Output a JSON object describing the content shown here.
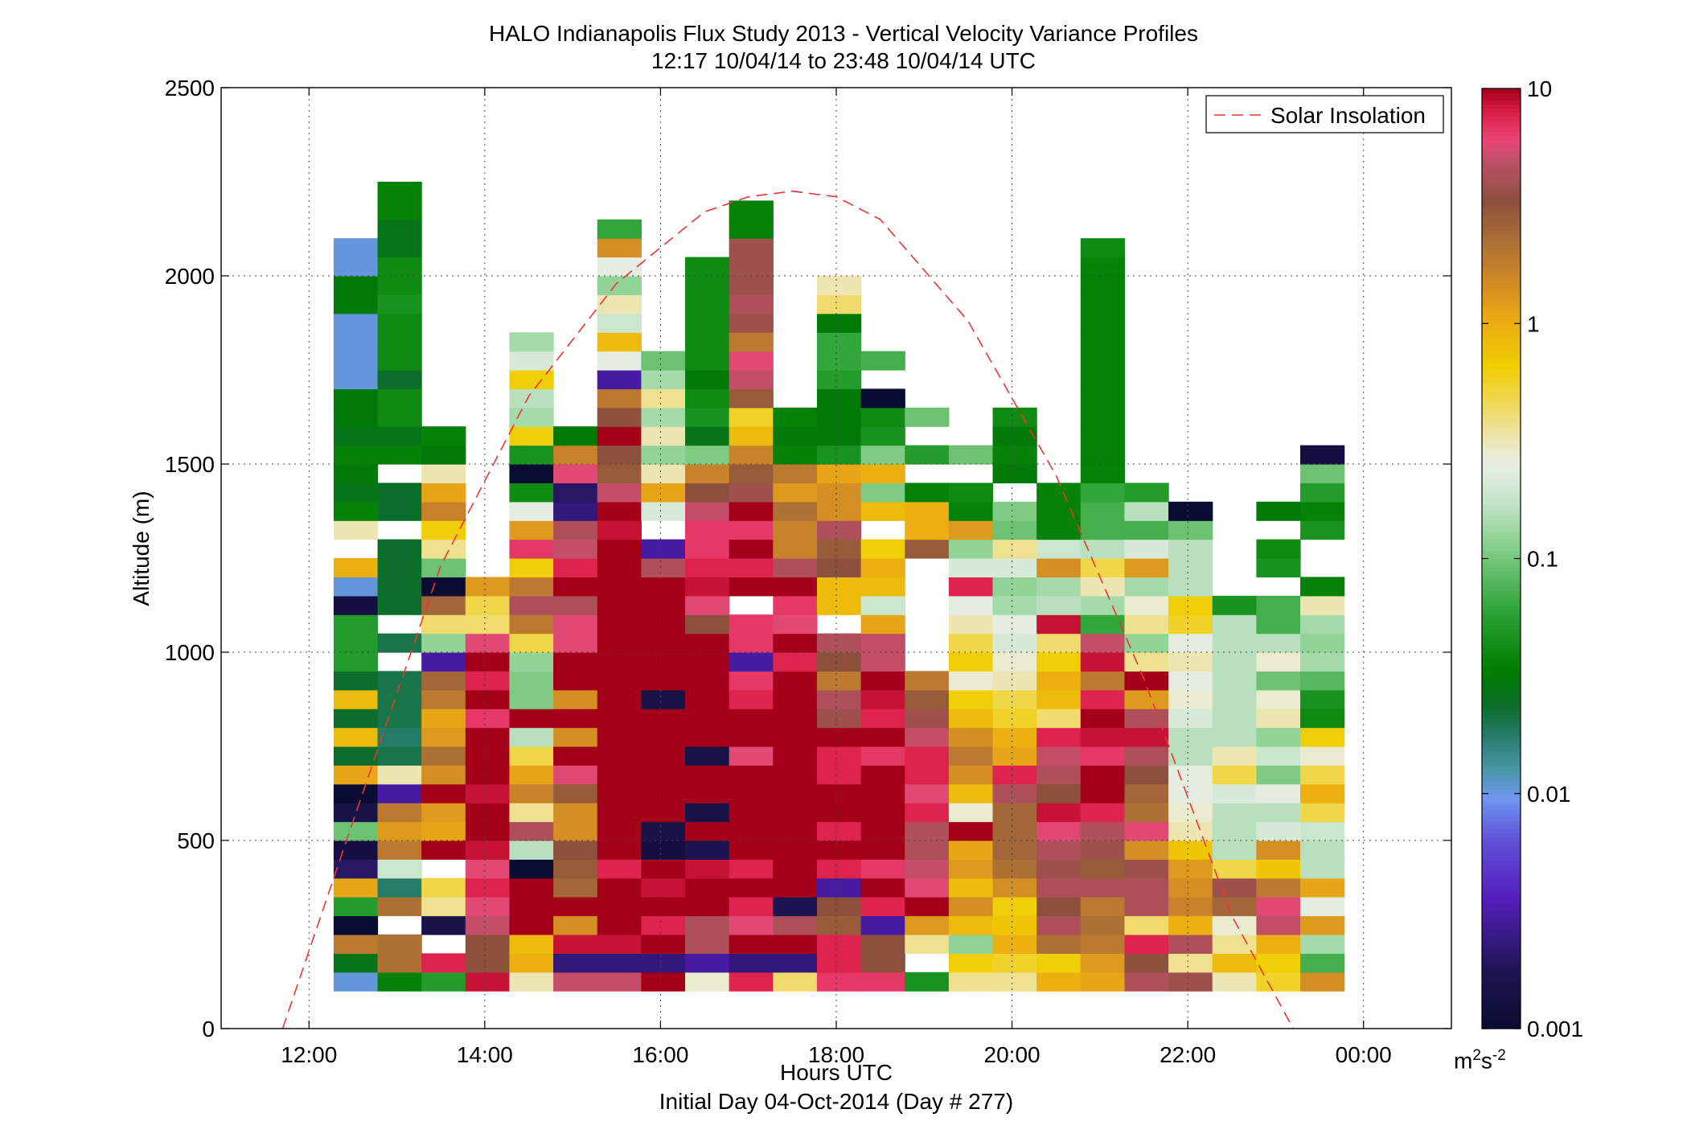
{
  "title_line1": "HALO Indianapolis Flux Study 2013 - Vertical Velocity Variance Profiles",
  "title_line2": "12:17 10/04/14 to 23:48 10/04/14  UTC",
  "units": {
    "base": "m",
    "exp1": "2",
    "mid": "s",
    "exp2": "-2"
  },
  "chart_data": {
    "type": "heatmap",
    "title": "HALO Indianapolis Flux Study 2013 - Vertical Velocity Variance Profiles",
    "subtitle": "12:17 10/04/14 to 23:48 10/04/14  UTC",
    "xlabel": "Hours UTC",
    "xlabel_sub": "Initial Day 04-Oct-2014 (Day # 277)",
    "ylabel": "Altitude (m)",
    "xlim": [
      11.0,
      25.0
    ],
    "ylim": [
      0,
      2500
    ],
    "xticks": [
      12,
      14,
      16,
      18,
      20,
      22,
      24
    ],
    "xtick_labels": [
      "12:00",
      "14:00",
      "16:00",
      "18:00",
      "20:00",
      "22:00",
      "00:00"
    ],
    "yticks": [
      0,
      500,
      1000,
      1500,
      2000,
      2500
    ],
    "ytick_labels": [
      "0",
      "500",
      "1000",
      "1500",
      "2000",
      "2500"
    ],
    "grid": true,
    "legend": {
      "entries": [
        "Solar Insolation"
      ],
      "location": "top-right"
    },
    "colorbar": {
      "scale": "log",
      "range": [
        0.001,
        10
      ],
      "ticks": [
        0.001,
        0.01,
        0.1,
        1,
        10
      ],
      "tick_labels": [
        "0.001",
        "0.01",
        "0.1",
        "1",
        "10"
      ],
      "units": "m^2 s^-2"
    },
    "bins": {
      "x_start": 12.28,
      "x_step": 0.5,
      "y_start": 100,
      "y_step": 50
    },
    "columns": [
      {
        "time": "12:32",
        "levels": "AHg0Mc52Q3.cGaGaGMMM2Ab!ZJHIJHIIAAAAIIAA"
      },
      {
        "time": "13:02",
        "levels": "Jhh/hEVgdg8ZFEFFF!F!GGGG!GG!JHKKGKKKLKKHHJJ"
      },
      {
        "time": "13:32",
        "levels": "Mq/3[]/ucduehdcgi8S\\i+Q[_fcZIJ"
      },
      {
        "time": "14:02",
        "levels": "rkknoqortsrvtupvqvo\\]d/"
      },
      {
        "time": "14:32",
        "levels": "Zbaswz+Um[fc]UvRRS]gmg_pdXK+L_TU_WT"
      },
      {
        "time": "15:02",
        "levels": "n6rewijkeejoxeweyvoomyqnm65ofI"
      },
      {
        "time": "15:32",
        "levels": "n6rzxuqxtyvwuxvuvvxxxvvxrvnjkzkg8XaVZSXeN"
      },
      {
        "time": "16:02",
        "levels": "u6uqvrx23vyyxwx3xvxuzwm8,WcZSZT[TQ/"
      },
      {
        "time": "16:32",
        "levels": "Y8mmvxr4v3yy3xtuzxykorqppnkfRHLKIKKKKKK/"
      },
      {
        "time": "17:02",
        "levels": "q6zoqtqyvsxvovtqp8pp,tqspsljfa^jnoglmlllJJ/"
      },
      {
        "time": "17:32",
        "levels": "\\6tm4txzvxwzwuvvvqsopumffhdgJIJ"
      },
      {
        "time": "18:02",
        "levels": "pqqjk8qsqxtqqylmgkm,aakjmeecLIIIMNNI\\Z"
      },
      {
        "time": "18:32",
        "levels": "pkk8qvpxvxvspuqrsnncVab_,aRbRLK0,O,"
      },
      {
        "time": "19:02",
        "levels": "L,[dsonmmqoqqnljg//,/,/jbbJ,M,Q"
      },
      {
        "time": "19:32",
        "levels": "[_SaeadcsYaegea_Y_]ZXqWSdJK,Q"
      },
      {
        "time": "20:02",
        "levels": "[^b`_ehiiimqcb^]ZYWXTSW[QR/IJIK"
      },
      {
        "time": "20:32",
        "levels": "b_hmkmlmorkmnq\\ab_\\rUTeVJJJ"
      },
      {
        "time": "21:02",
        "levels": "cdghgmjlmqtsprsqgrnNTZ]UOONJJJJJJJJJJJJK"
      },
      {
        "time": "21:32",
        "levels": "mkq\\mmleohikmrmdt[S[YTdWOUM,,,,,,"
      },
      {
        "time": "22:02",
        "levels": "l[mbfed`ZYXXUUWYXZX^_UUUQ0"
      },
      {
        "time": "22:32",
        "levels": "Za[Yil]UUUW]ZUUUUUUUL,"
      },
      {
        "time": "23:02",
        "levels": "^_bnog`eWUXRVSZYQYUOO,LK/I"
      },
      {
        "time": "23:32",
        "levels": "eOTdXcUUV]b]Y_KLPTSTZJ,,LJMQ2"
      }
    ],
    "color_code": "ASCII char c -> log10(value) = -3 + (code(c) - 48) * 0.0597; '/', '!' and ',' mark gaps",
    "solar_insolation_curve": {
      "x": [
        11.7,
        12.5,
        13.5,
        14.5,
        15.5,
        16.5,
        17.0,
        17.5,
        18.0,
        18.5,
        19.5,
        20.5,
        21.5,
        22.5,
        23.2
      ],
      "y": [
        0,
        550,
        1230,
        1680,
        1980,
        2170,
        2210,
        2225,
        2210,
        2150,
        1880,
        1470,
        930,
        300,
        0
      ]
    }
  },
  "labels": {
    "x_axis": "Hours UTC",
    "x_sub": "Initial Day 04-Oct-2014 (Day # 277)",
    "y_axis": "Altitude (m)",
    "legend_entry": "Solar Insolation"
  }
}
